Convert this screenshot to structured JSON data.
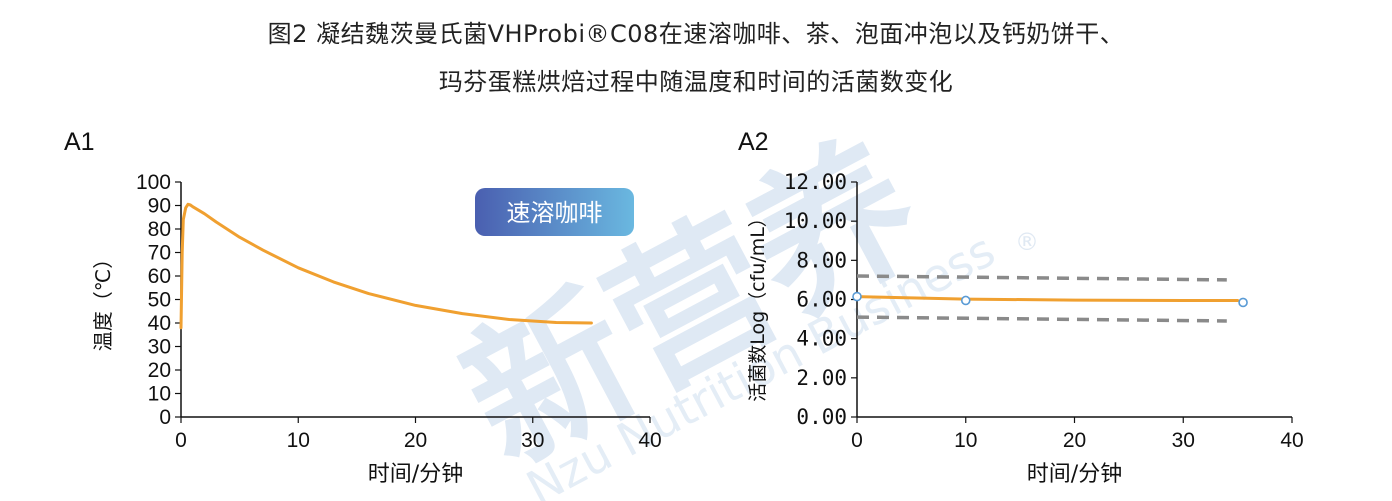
{
  "title_line1": "图2 凝结魏茨曼氏菌VHProbi®C08在速溶咖啡、茶、泡面冲泡以及钙奶饼干、",
  "title_line2": "玛芬蛋糕烘焙过程中随温度和时间的活菌数变化",
  "watermark": {
    "main": "新营养",
    "sub": "Nzu Nutrition Business",
    "reg": "®"
  },
  "colors": {
    "line": "#f0a030",
    "dashed": "#8a8a8a",
    "point_edge": "#5a9bd5",
    "badge_start": "#4a5fb0",
    "badge_end": "#6ab8e0"
  },
  "chart_data": [
    {
      "panel": "A1",
      "type": "line",
      "badge": "速溶咖啡",
      "xlabel": "时间/分钟",
      "ylabel": "温度（℃）",
      "xlim": [
        0,
        40
      ],
      "ylim": [
        0,
        100
      ],
      "xticks": [
        "0",
        "10",
        "20",
        "30",
        "40"
      ],
      "yticks": [
        "0",
        "10",
        "20",
        "30",
        "40",
        "50",
        "60",
        "70",
        "80",
        "90",
        "100"
      ],
      "series": [
        {
          "x": [
            0,
            0.1,
            0.2,
            0.4,
            0.6,
            0.8,
            1,
            2,
            3,
            5,
            7,
            10,
            13,
            16,
            20,
            24,
            28,
            32,
            35
          ],
          "y": [
            38,
            70,
            84,
            89,
            90.5,
            90.2,
            89.5,
            86.5,
            83,
            76.5,
            71,
            63.5,
            57.5,
            52.5,
            47.5,
            44,
            41.5,
            40.2,
            40
          ]
        }
      ]
    },
    {
      "panel": "A2",
      "type": "line",
      "xlabel": "时间/分钟",
      "ylabel": "活菌数Log（cfu/mL）",
      "xlim": [
        0,
        40
      ],
      "ylim": [
        0,
        12
      ],
      "xticks": [
        "0",
        "10",
        "20",
        "30",
        "40"
      ],
      "yticks": [
        "0.00",
        "2.00",
        "4.00",
        "6.00",
        "8.00",
        "10.00",
        "12.00"
      ],
      "points": {
        "x": [
          0,
          10,
          35.5
        ],
        "y": [
          6.15,
          5.95,
          5.85
        ]
      },
      "fit": {
        "x": [
          0,
          5,
          10,
          20,
          30,
          35
        ],
        "y": [
          6.15,
          6.08,
          6.02,
          5.97,
          5.95,
          5.95
        ]
      },
      "upper_bound": {
        "x": [
          0,
          34
        ],
        "y": [
          7.2,
          7.0
        ]
      },
      "lower_bound": {
        "x": [
          0,
          34
        ],
        "y": [
          5.1,
          4.9
        ]
      }
    }
  ]
}
